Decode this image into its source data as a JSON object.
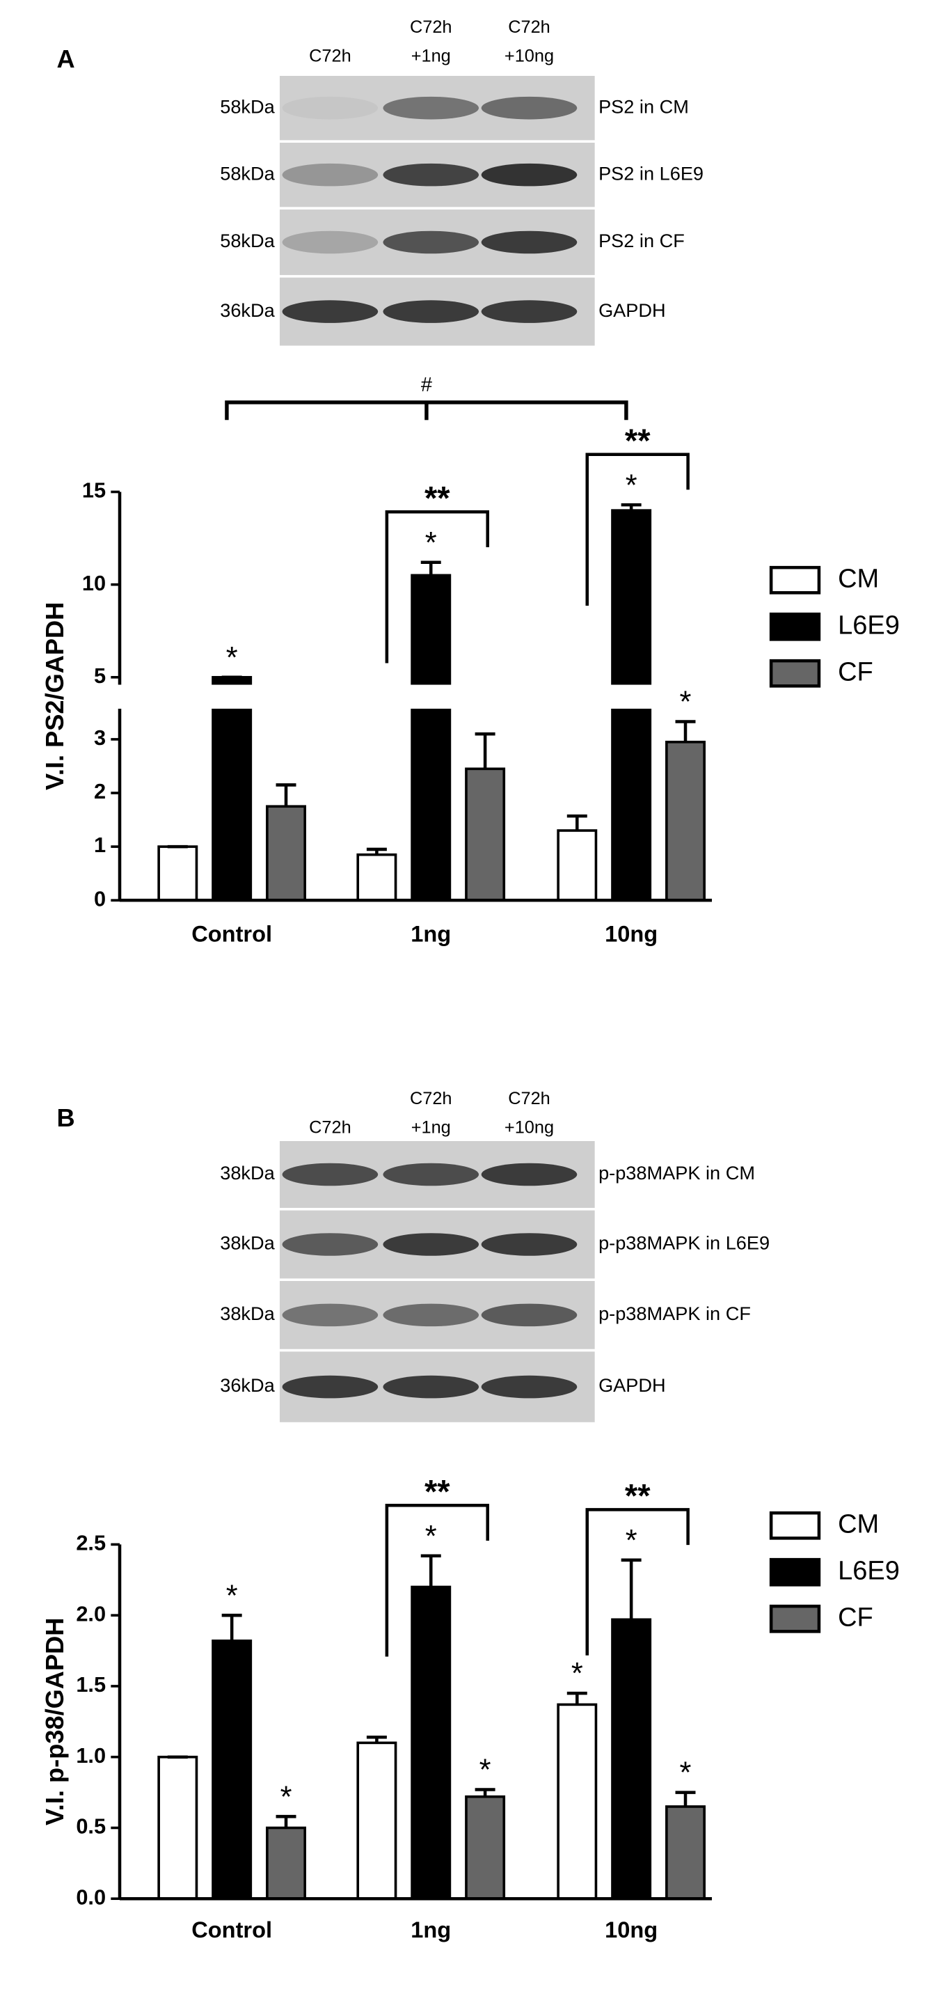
{
  "blots": [
    {
      "panel": "A",
      "lanes": [
        [
          "C72h"
        ],
        [
          "C72h",
          "+1ng"
        ],
        [
          "C72h",
          "+10ng"
        ]
      ],
      "rows": [
        {
          "size": "58kDa",
          "label": "PS2 in CM"
        },
        {
          "size": "58kDa",
          "label": "PS2 in L6E9"
        },
        {
          "size": "58kDa",
          "label": "PS2 in CF"
        },
        {
          "size": "36kDa",
          "label": "GAPDH"
        }
      ]
    },
    {
      "panel": "B",
      "lanes": [
        [
          "C72h"
        ],
        [
          "C72h",
          "+1ng"
        ],
        [
          "C72h",
          "+10ng"
        ]
      ],
      "rows": [
        {
          "size": "38kDa",
          "label": "p-p38MAPK in CM"
        },
        {
          "size": "38kDa",
          "label": "p-p38MAPK in L6E9"
        },
        {
          "size": "38kDa",
          "label": "p-p38MAPK in CF"
        },
        {
          "size": "36kDa",
          "label": "GAPDH"
        }
      ]
    }
  ],
  "chart_data": [
    {
      "type": "bar",
      "y_label": "V.I. PS2/GAPDH",
      "categories": [
        "Control",
        "1ng",
        "10ng"
      ],
      "series": [
        {
          "name": "CM",
          "color": "#ffffff",
          "values": [
            1.0,
            0.85,
            1.3
          ],
          "errors": [
            0,
            0.1,
            0.27
          ]
        },
        {
          "name": "L6E9",
          "color": "#000000",
          "values": [
            5.0,
            10.5,
            14.0
          ],
          "errors": [
            0,
            0.7,
            0.3
          ]
        },
        {
          "name": "CF",
          "color": "#666666",
          "values": [
            1.75,
            2.45,
            2.95
          ],
          "errors": [
            0.4,
            0.65,
            0.38
          ]
        }
      ],
      "ylim": [
        0,
        15
      ],
      "y_break": [
        3.5,
        4.8
      ],
      "yticks": [
        0,
        1,
        2,
        3,
        5,
        10,
        15
      ],
      "legend": "right",
      "stars": [
        {
          "text": "*",
          "series": 1,
          "category": 0
        },
        {
          "text": "*",
          "series": 1,
          "category": 1
        },
        {
          "text": "*",
          "series": 1,
          "category": 2
        },
        {
          "text": "*",
          "series": 2,
          "category": 2
        }
      ],
      "brackets": [
        {
          "text": "**",
          "category": 1,
          "from_series": 0,
          "to_series": 2
        },
        {
          "text": "**",
          "category": 2,
          "from_series": 0,
          "to_series": 2
        }
      ],
      "group_bracket": {
        "text": "#",
        "series": 1,
        "from_category": 0,
        "to_category": 2
      }
    },
    {
      "type": "bar",
      "y_label": "V.I. p-p38/GAPDH",
      "categories": [
        "Control",
        "1ng",
        "10ng"
      ],
      "series": [
        {
          "name": "CM",
          "color": "#ffffff",
          "values": [
            1.0,
            1.1,
            1.37
          ],
          "errors": [
            0,
            0.04,
            0.08
          ]
        },
        {
          "name": "L6E9",
          "color": "#000000",
          "values": [
            1.82,
            2.2,
            1.97
          ],
          "errors": [
            0.18,
            0.22,
            0.42
          ]
        },
        {
          "name": "CF",
          "color": "#666666",
          "values": [
            0.5,
            0.72,
            0.65
          ],
          "errors": [
            0.08,
            0.05,
            0.1
          ]
        }
      ],
      "ylim": [
        0,
        2.5
      ],
      "yticks": [
        {
          "value": 0,
          "label": "0.0"
        },
        {
          "value": 0.5,
          "label": "0.5"
        },
        {
          "value": 1,
          "label": "1.0"
        },
        {
          "value": 1.5,
          "label": "1.5"
        },
        {
          "value": 2,
          "label": "2.0"
        },
        {
          "value": 2.5,
          "label": "2.5"
        }
      ],
      "legend": "right",
      "stars": [
        {
          "text": "*",
          "series": 1,
          "category": 0
        },
        {
          "text": "*",
          "series": 2,
          "category": 0
        },
        {
          "text": "*",
          "series": 1,
          "category": 1
        },
        {
          "text": "*",
          "series": 2,
          "category": 1
        },
        {
          "text": "*",
          "series": 0,
          "category": 2
        },
        {
          "text": "*",
          "series": 1,
          "category": 2
        },
        {
          "text": "*",
          "series": 2,
          "category": 2
        }
      ],
      "brackets": [
        {
          "text": "**",
          "category": 1,
          "from_series": 0,
          "to_series": 2
        },
        {
          "text": "**",
          "category": 2,
          "from_series": 0,
          "to_series": 2
        }
      ]
    }
  ]
}
